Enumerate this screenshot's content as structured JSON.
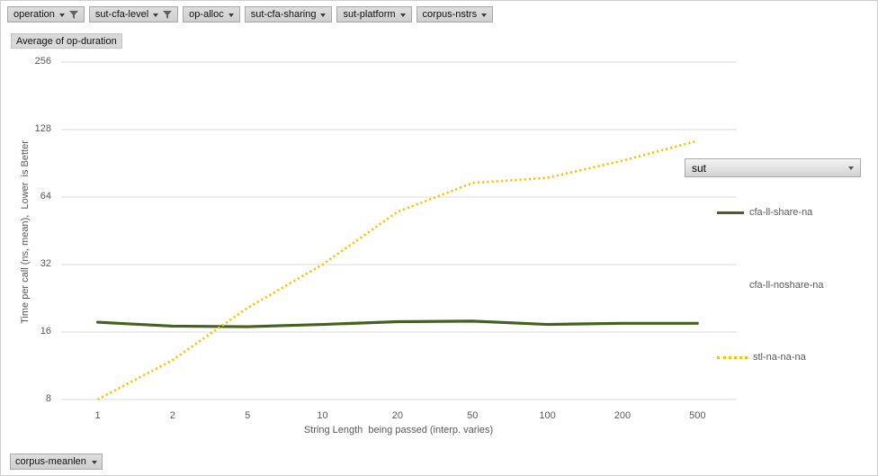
{
  "pivot_filter_buttons": [
    {
      "label": "operation",
      "filtered": true
    },
    {
      "label": "sut-cfa-level",
      "filtered": true
    },
    {
      "label": "op-alloc",
      "filtered": false
    },
    {
      "label": "sut-cfa-sharing",
      "filtered": false
    },
    {
      "label": "sut-platform",
      "filtered": false
    },
    {
      "label": "corpus-nstrs",
      "filtered": false
    }
  ],
  "value_field_button": {
    "label": "Average of op-duration"
  },
  "legend": {
    "field_dropdown_label": "sut",
    "position": "right"
  },
  "axis_field_button": {
    "label": "corpus-meanlen"
  },
  "colors": {
    "gridline": "#d9d9d9",
    "axis_text": "#595959",
    "series_green": "#44621f",
    "series_gold": "#ffc000"
  },
  "chart_data": {
    "type": "line",
    "title": "Average of op-duration",
    "x": [
      1,
      2,
      5,
      10,
      20,
      50,
      100,
      200,
      500
    ],
    "xlabel": "String Length  being passed (interp. varies)",
    "ylabel": "Time per call (ns, mean),  Lower  is Better",
    "x_scale": "log-categorical",
    "y_scale": "log2",
    "y_ticks": [
      8,
      16,
      32,
      64,
      128,
      256
    ],
    "ylim": [
      8,
      256
    ],
    "grid": true,
    "legend_position": "right",
    "series": [
      {
        "name": "cfa-ll-share-na",
        "color": "#44621f",
        "style": "solid",
        "values": [
          17.7,
          17.0,
          16.9,
          17.3,
          17.8,
          17.9,
          17.3,
          17.5,
          17.5
        ]
      },
      {
        "name": "cfa-ll-noshare-na",
        "color": null,
        "style": "none",
        "values": null
      },
      {
        "name": "stl-na-na-na",
        "color": "#ffc000",
        "style": "dotted",
        "values": [
          8,
          12,
          20.5,
          32,
          55,
          74,
          78,
          93,
          114
        ]
      }
    ]
  }
}
